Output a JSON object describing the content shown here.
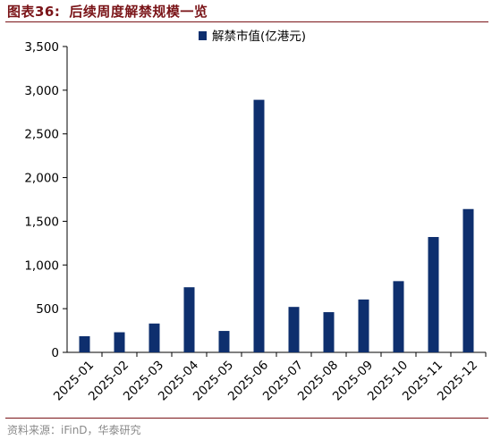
{
  "figure": {
    "label": "图表36:",
    "title": "后续周度解禁规模一览",
    "source": "资料来源：iFinD，华泰研究"
  },
  "colors": {
    "bar": "#0e2f6e",
    "title": "#7a1418",
    "axis": "#000000",
    "source": "#8a8a8a"
  },
  "chart_data": {
    "type": "bar",
    "title": "后续周度解禁规模一览",
    "xlabel": "",
    "ylabel": "",
    "categories": [
      "2025-01",
      "2025-02",
      "2025-03",
      "2025-04",
      "2025-05",
      "2025-06",
      "2025-07",
      "2025-08",
      "2025-09",
      "2025-10",
      "2025-11",
      "2025-12"
    ],
    "series": [
      {
        "name": "解禁市值(亿港元)",
        "values": [
          185,
          230,
          330,
          745,
          245,
          2890,
          520,
          460,
          605,
          815,
          1320,
          1640
        ]
      }
    ],
    "ylim": [
      0,
      3500
    ],
    "yticks": [
      0,
      500,
      1000,
      1500,
      2000,
      2500,
      3000,
      3500
    ],
    "ytick_labels": [
      "0",
      "500",
      "1,000",
      "1,500",
      "2,000",
      "2,500",
      "3,000",
      "3,500"
    ],
    "grid": false,
    "legend_position": "top-center"
  }
}
